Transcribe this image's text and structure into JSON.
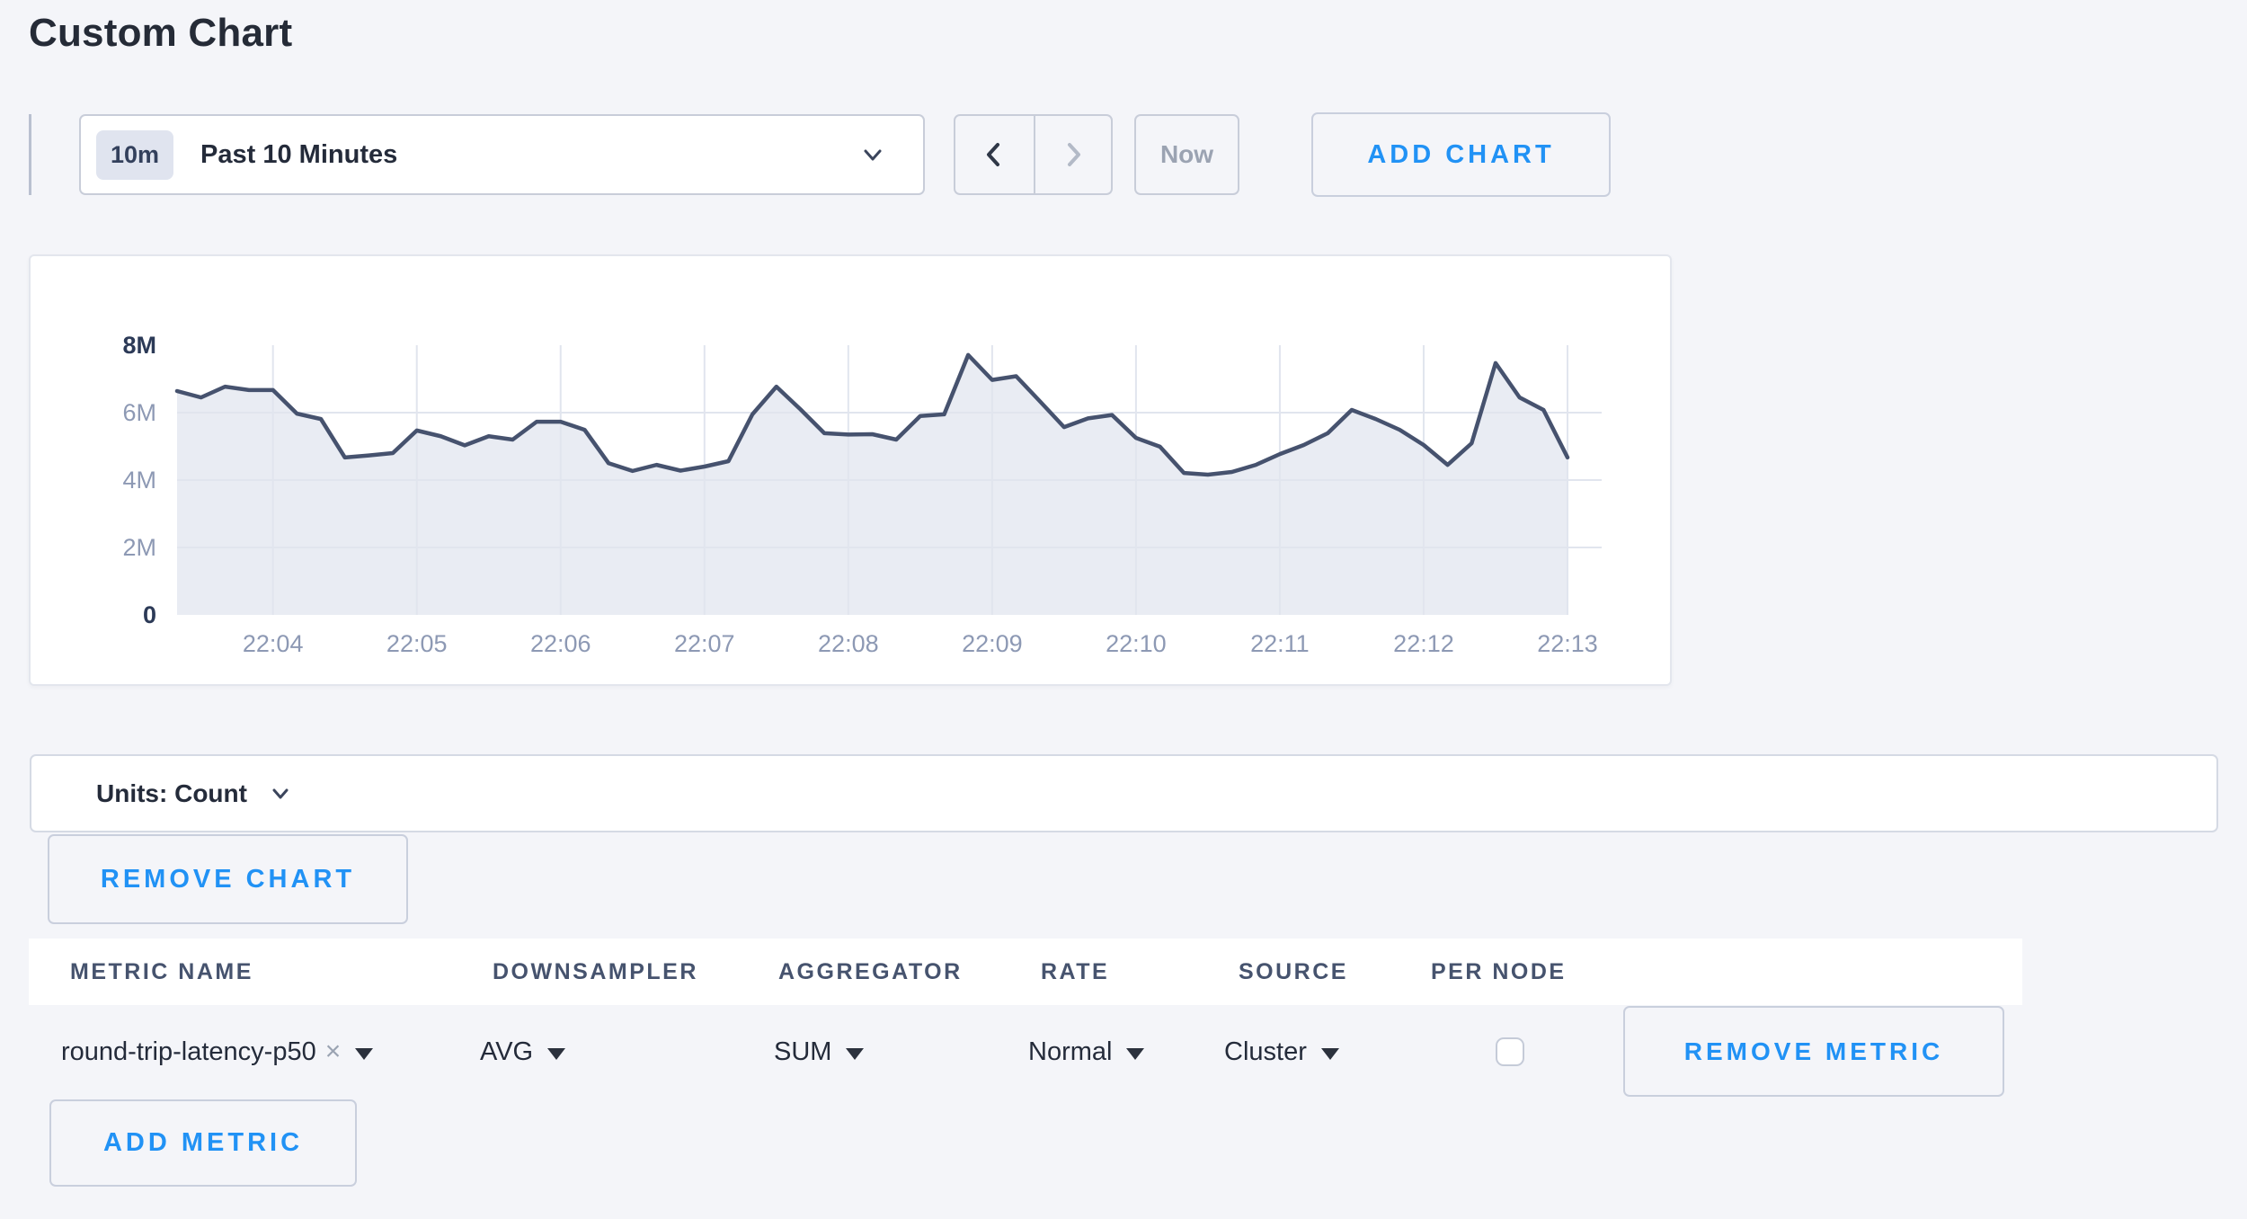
{
  "page": {
    "title": "Custom Chart",
    "background": "#f4f5f9",
    "accent_blue": "#2192f5"
  },
  "toolbar": {
    "range_badge": "10m",
    "range_label": "Past 10 Minutes",
    "now_label": "Now",
    "add_chart_label": "ADD CHART",
    "prev_icon": "chevron-left",
    "next_icon": "chevron-right",
    "next_disabled": true
  },
  "chart_data": {
    "type": "area",
    "title": "",
    "unit": "Count",
    "x_start": "22:03:20",
    "x_interval_seconds": 10,
    "values_millions": [
      6.64,
      6.45,
      6.77,
      6.67,
      6.67,
      5.97,
      5.81,
      4.67,
      4.73,
      4.8,
      5.47,
      5.3,
      5.03,
      5.3,
      5.2,
      5.73,
      5.73,
      5.49,
      4.5,
      4.27,
      4.45,
      4.28,
      4.4,
      4.56,
      5.95,
      6.77,
      6.1,
      5.39,
      5.35,
      5.36,
      5.2,
      5.9,
      5.95,
      7.71,
      6.97,
      7.08,
      6.33,
      5.57,
      5.83,
      5.93,
      5.25,
      4.99,
      4.21,
      4.16,
      4.24,
      4.45,
      4.77,
      5.04,
      5.39,
      6.08,
      5.81,
      5.49,
      5.04,
      4.45,
      5.09,
      7.47,
      6.45,
      6.08,
      4.67
    ],
    "ylim_millions": [
      0,
      8
    ],
    "y_ticks": [
      {
        "label": "0",
        "m": 0,
        "emphasis": true
      },
      {
        "label": "2M",
        "m": 2,
        "emphasis": false
      },
      {
        "label": "4M",
        "m": 4,
        "emphasis": false
      },
      {
        "label": "6M",
        "m": 6,
        "emphasis": false
      },
      {
        "label": "8M",
        "m": 8,
        "emphasis": true
      }
    ],
    "x_tick_labels": [
      "22:04",
      "22:05",
      "22:06",
      "22:07",
      "22:08",
      "22:09",
      "22:10",
      "22:11",
      "22:12",
      "22:13"
    ],
    "grid": true,
    "legend": "none",
    "line_color": "#46526e",
    "fill_color": "#e9ecf3",
    "grid_color": "#e1e5ee",
    "axis_label_color": "#8d99b4",
    "axis_emphasis_color": "#2c3a57"
  },
  "units_bar": {
    "label": "Units: Count"
  },
  "chart_actions": {
    "remove_chart_label": "REMOVE CHART",
    "add_metric_label": "ADD METRIC"
  },
  "metrics_table": {
    "headers": [
      "METRIC NAME",
      "DOWNSAMPLER",
      "AGGREGATOR",
      "RATE",
      "SOURCE",
      "PER NODE"
    ],
    "rows": [
      {
        "metric_name": "round-trip-latency-p50",
        "remove_glyph": "×",
        "downsampler": "AVG",
        "aggregator": "SUM",
        "rate": "Normal",
        "source": "Cluster",
        "per_node_checked": false,
        "remove_label": "REMOVE METRIC"
      }
    ]
  }
}
